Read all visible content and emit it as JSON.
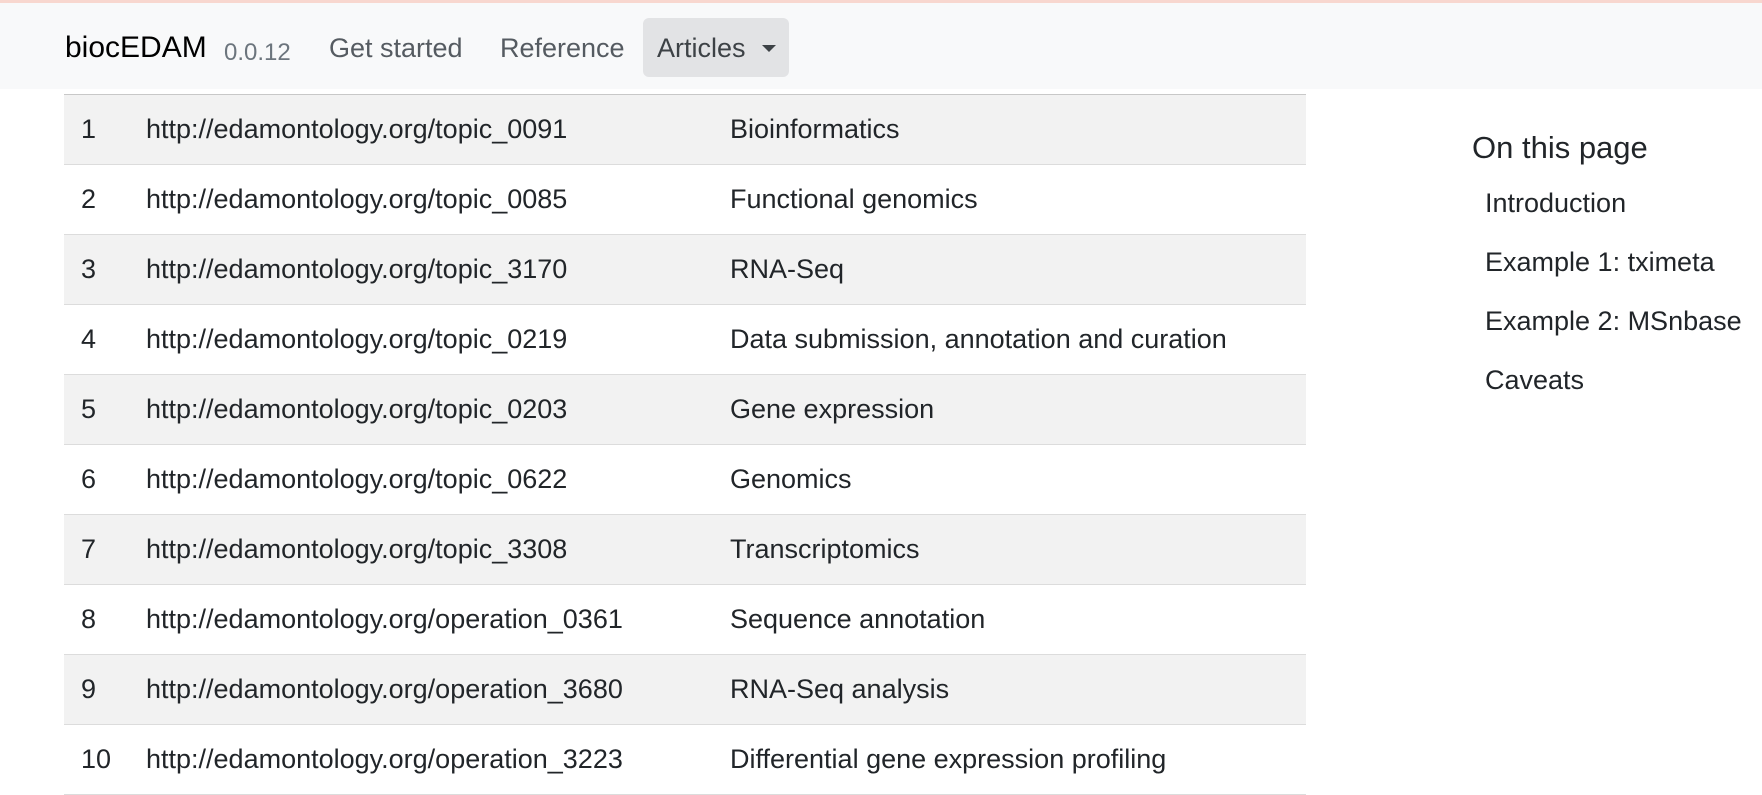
{
  "navbar": {
    "brand": "biocEDAM",
    "version": "0.0.12",
    "links": {
      "get_started": "Get started",
      "reference": "Reference",
      "articles": "Articles"
    }
  },
  "table": {
    "rows": [
      {
        "num": "1",
        "uri": "http://edamontology.org/topic_0091",
        "label": "Bioinformatics"
      },
      {
        "num": "2",
        "uri": "http://edamontology.org/topic_0085",
        "label": "Functional genomics"
      },
      {
        "num": "3",
        "uri": "http://edamontology.org/topic_3170",
        "label": "RNA-Seq"
      },
      {
        "num": "4",
        "uri": "http://edamontology.org/topic_0219",
        "label": "Data submission, annotation and curation"
      },
      {
        "num": "5",
        "uri": "http://edamontology.org/topic_0203",
        "label": "Gene expression"
      },
      {
        "num": "6",
        "uri": "http://edamontology.org/topic_0622",
        "label": "Genomics"
      },
      {
        "num": "7",
        "uri": "http://edamontology.org/topic_3308",
        "label": "Transcriptomics"
      },
      {
        "num": "8",
        "uri": "http://edamontology.org/operation_0361",
        "label": "Sequence annotation"
      },
      {
        "num": "9",
        "uri": "http://edamontology.org/operation_3680",
        "label": "RNA-Seq analysis"
      },
      {
        "num": "10",
        "uri": "http://edamontology.org/operation_3223",
        "label": "Differential gene expression profiling"
      }
    ]
  },
  "toc": {
    "title": "On this page",
    "items": [
      "Introduction",
      "Example 1: tximeta",
      "Example 2: MSnbase",
      "Caveats"
    ]
  }
}
